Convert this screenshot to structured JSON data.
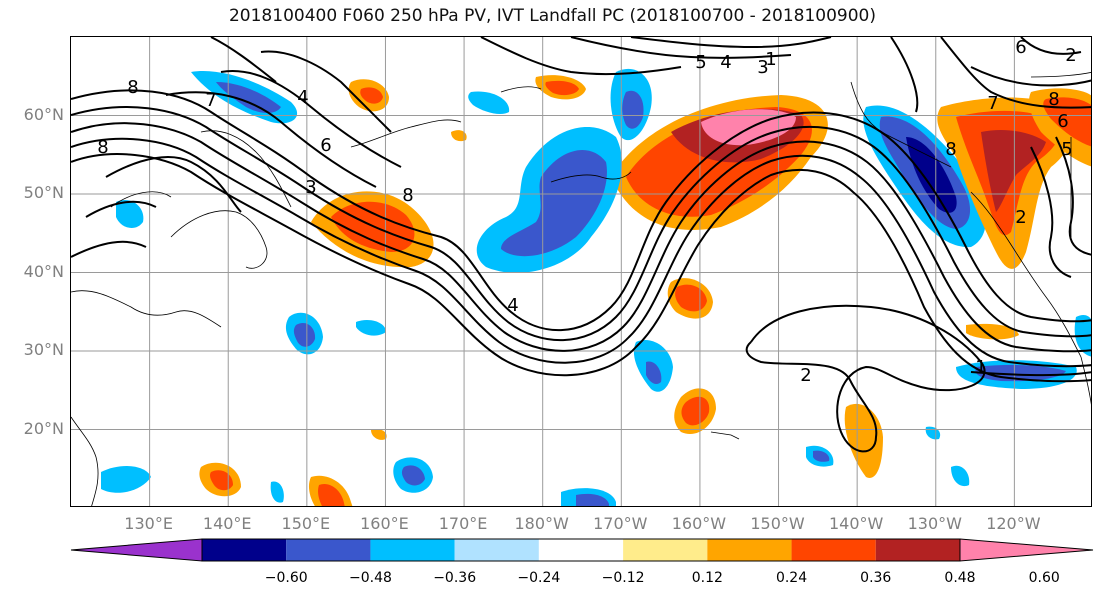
{
  "title": "2018100400 F060 250 hPa PV, IVT Landfall PC (2018100700 - 2018100900)",
  "lat_labels": [
    {
      "text": "60°N",
      "lat": 60
    },
    {
      "text": "50°N",
      "lat": 50
    },
    {
      "text": "40°N",
      "lat": 40
    },
    {
      "text": "30°N",
      "lat": 30
    },
    {
      "text": "20°N",
      "lat": 20
    }
  ],
  "lon_labels": [
    {
      "text": "130°E",
      "lon": 130
    },
    {
      "text": "140°E",
      "lon": 140
    },
    {
      "text": "150°E",
      "lon": 150
    },
    {
      "text": "160°E",
      "lon": 160
    },
    {
      "text": "170°E",
      "lon": 170
    },
    {
      "text": "180°W",
      "lon": 180
    },
    {
      "text": "170°W",
      "lon": 190
    },
    {
      "text": "160°W",
      "lon": 200
    },
    {
      "text": "150°W",
      "lon": 210
    },
    {
      "text": "140°W",
      "lon": 220
    },
    {
      "text": "130°W",
      "lon": 230
    },
    {
      "text": "120°W",
      "lon": 240
    }
  ],
  "colorbar": {
    "colors": [
      "#9a32cd",
      "#00008b",
      "#3a57cc",
      "#00bfff",
      "#b0e2ff",
      "#ffffff",
      "#ffec8b",
      "#ffa500",
      "#ff4500",
      "#b22222",
      "#ff82ab"
    ],
    "labels": [
      "−0.60",
      "−0.48",
      "−0.36",
      "−0.24",
      "−0.12",
      "0.12",
      "0.24",
      "0.36",
      "0.48",
      "0.60"
    ]
  },
  "contour_labels": [
    "8",
    "7",
    "6",
    "4",
    "3",
    "8",
    "8",
    "4",
    "2",
    "2",
    "4",
    "3",
    "5",
    "8",
    "7",
    "8",
    "6",
    "5",
    "6",
    "1",
    "1",
    "2"
  ]
}
